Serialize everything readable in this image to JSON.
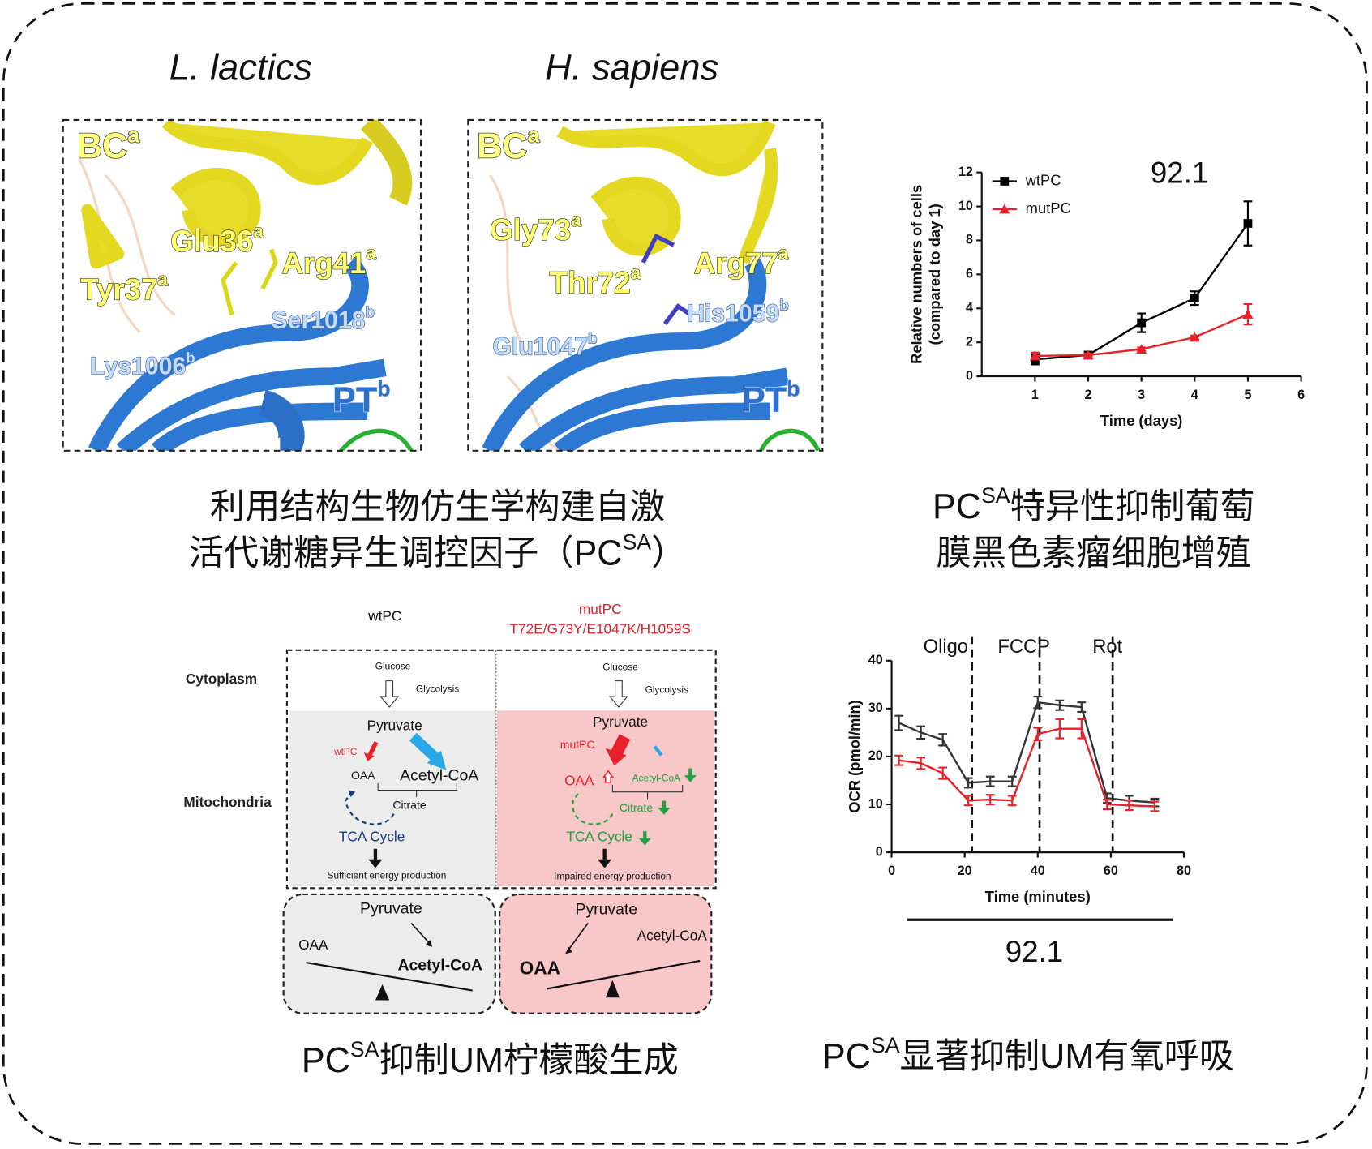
{
  "structures": {
    "panels": [
      {
        "species": "L. lactics",
        "labels": [
          {
            "text": "BC",
            "sup": "a"
          },
          {
            "text": "Glu36",
            "sup": "a"
          },
          {
            "text": "Arg41",
            "sup": "a"
          },
          {
            "text": "Tyr37",
            "sup": "a"
          },
          {
            "text": "Ser1018",
            "sup": "b"
          },
          {
            "text": "Lys1006",
            "sup": "b"
          },
          {
            "text": "PT",
            "sup": "b"
          }
        ]
      },
      {
        "species": "H. sapiens",
        "labels": [
          {
            "text": "BC",
            "sup": "a"
          },
          {
            "text": "Gly73",
            "sup": "a"
          },
          {
            "text": "Arg77",
            "sup": "a"
          },
          {
            "text": "Thr72",
            "sup": "a"
          },
          {
            "text": "His1059",
            "sup": "b"
          },
          {
            "text": "Glu1047",
            "sup": "b"
          },
          {
            "text": "PT",
            "sup": "b"
          }
        ]
      }
    ]
  },
  "captions": {
    "structure": {
      "line1": "利用结构生物仿生学构建自激",
      "line2": "活代谢糖异生调控因子（PC",
      "line2_sup": "SA",
      "line2_end": "）"
    },
    "growth": {
      "line1_start": "PC",
      "line1_sup": "SA",
      "line1_end": "特异性抑制葡萄",
      "line2": "膜黑色素瘤细胞增殖"
    },
    "citrate": {
      "start": "PC",
      "sup": "SA",
      "end": "抑制UM柠檬酸生成"
    },
    "respiration": {
      "start": "PC",
      "sup": "SA",
      "end": "显著抑制UM有氧呼吸"
    }
  },
  "diagram": {
    "wt_header": "wtPC",
    "mut_header": "mutPC",
    "mut_mutations": "T72E/G73Y/E1047K/H1059S",
    "cytoplasm": "Cytoplasm",
    "mitochondria": "Mitochondria",
    "wt": {
      "glucose": "Glucose",
      "glycolysis": "Glycolysis",
      "pyruvate": "Pyruvate",
      "enzyme": "wtPC",
      "oaa": "OAA",
      "acetyl_coa": "Acetyl-CoA",
      "citrate": "Citrate",
      "tca": "TCA Cycle",
      "energy": "Sufficient energy production"
    },
    "mut": {
      "glucose": "Glucose",
      "glycolysis": "Glycolysis",
      "pyruvate": "Pyruvate",
      "enzyme": "mutPC",
      "oaa": "OAA",
      "acetyl_coa": "Acetyl-CoA",
      "citrate": "Citrate",
      "tca": "TCA Cycle",
      "energy": "Impaired energy production"
    },
    "wt_balance": {
      "pyruvate": "Pyruvate",
      "oaa": "OAA",
      "acetyl_coa": "Acetyl-CoA"
    },
    "mut_balance": {
      "pyruvate": "Pyruvate",
      "oaa": "OAA",
      "acetyl_coa": "Acetyl-CoA"
    }
  },
  "chart_data": [
    {
      "type": "line",
      "annotation": "92.1",
      "x_label": "Time (days)",
      "y_label": [
        "Relative numbers of cells",
        "(compared to day 1)"
      ],
      "x": [
        1,
        2,
        3,
        4,
        5
      ],
      "series": [
        {
          "name": "wtPC",
          "color": "#000000",
          "marker": "square",
          "values": [
            1.0,
            1.25,
            3.15,
            4.6,
            9.0
          ],
          "errors": [
            0.3,
            0.1,
            0.55,
            0.4,
            1.3
          ]
        },
        {
          "name": "mutPC",
          "color": "#e8202a",
          "marker": "triangle",
          "values": [
            1.2,
            1.25,
            1.6,
            2.3,
            3.65
          ],
          "errors": [
            0.2,
            0.1,
            0.1,
            0.1,
            0.6
          ]
        }
      ],
      "xlim": [
        0,
        6
      ],
      "xticks": [
        1,
        2,
        3,
        4,
        5,
        6
      ],
      "ylim": [
        0,
        12
      ],
      "yticks": [
        0,
        2,
        4,
        6,
        8,
        10,
        12
      ],
      "legend": "upper left"
    },
    {
      "type": "line",
      "annotation": "92.1",
      "x_label": "Time (minutes)",
      "y_label": [
        "OCR (pmol/min)"
      ],
      "x": [
        2,
        8,
        14,
        21,
        27,
        33,
        40,
        46,
        52,
        59,
        65,
        72
      ],
      "series": [
        {
          "color": "#333333",
          "values": [
            27,
            25,
            23.5,
            14.5,
            14.8,
            14.8,
            31.3,
            30.7,
            30.3,
            11.3,
            10.8,
            10.4
          ],
          "errors": [
            1.5,
            1.3,
            1.2,
            1,
            1,
            1,
            1.2,
            1,
            1,
            1,
            1,
            0.8
          ]
        },
        {
          "color": "#e8202a",
          "values": [
            19.2,
            18.6,
            16.5,
            10.8,
            11,
            10.8,
            24.7,
            25.8,
            25.8,
            10,
            9.8,
            9.6
          ],
          "errors": [
            1,
            1.2,
            1.2,
            1,
            1,
            1,
            1.3,
            2,
            2,
            1,
            1,
            1
          ]
        }
      ],
      "injections": [
        {
          "label": "Oligo",
          "x": 22
        },
        {
          "label": "FCCP",
          "x": 40.5
        },
        {
          "label": "Rot",
          "x": 60.5
        }
      ],
      "xlim": [
        0,
        80
      ],
      "xticks": [
        0,
        20,
        40,
        60,
        80
      ],
      "ylim": [
        0,
        40
      ],
      "yticks": [
        0,
        10,
        20,
        30,
        40
      ]
    }
  ]
}
